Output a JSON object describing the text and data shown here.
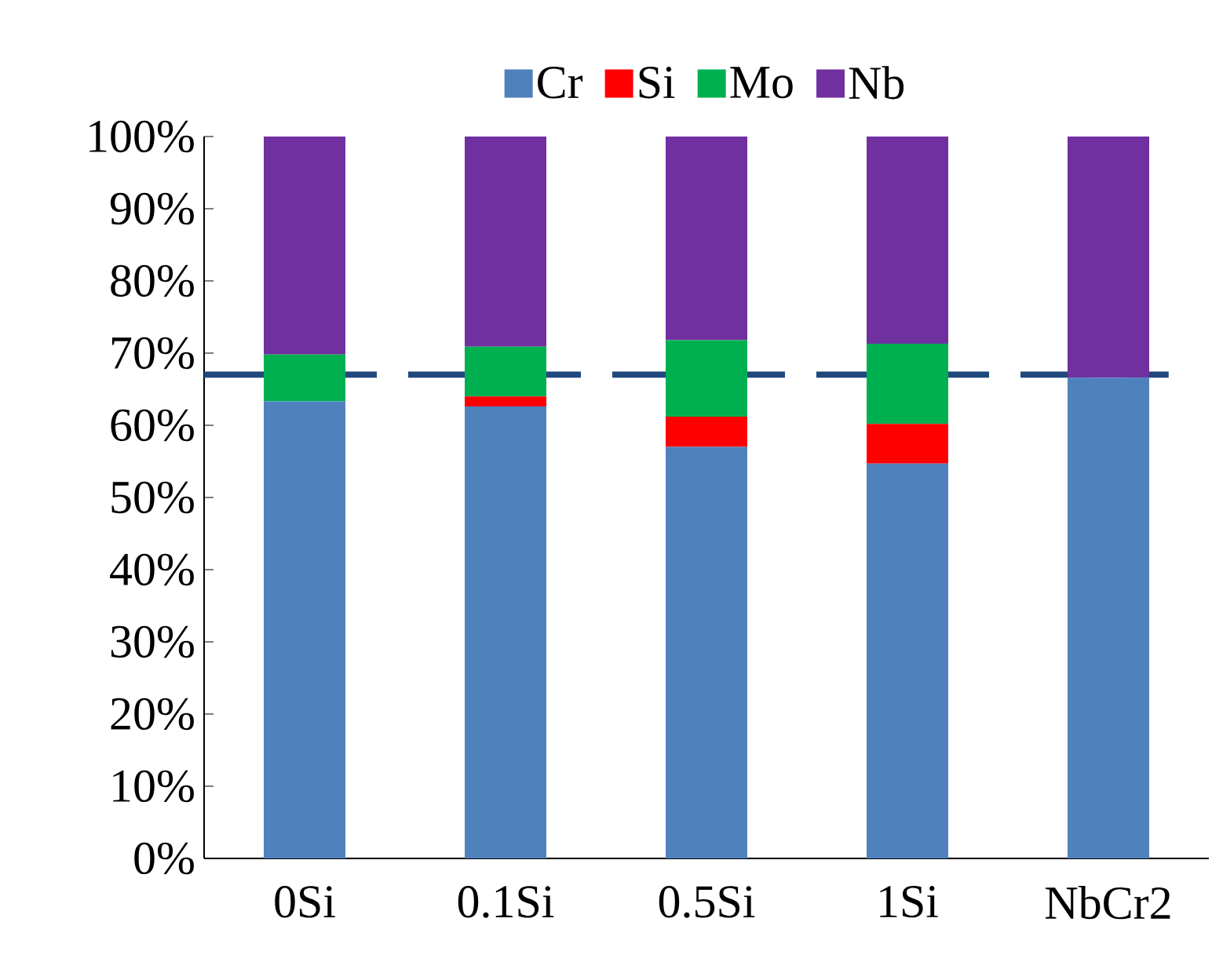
{
  "chart_data": {
    "type": "bar",
    "stacked": true,
    "categories": [
      "0Si",
      "0.1Si",
      "0.5Si",
      "1Si",
      "NbCr2"
    ],
    "series": [
      {
        "name": "Cr",
        "color": "#4f81bd",
        "values": [
          63.3,
          62.6,
          57.0,
          54.7,
          66.6
        ]
      },
      {
        "name": "Si",
        "color": "#ff0000",
        "values": [
          0,
          1.4,
          4.2,
          5.5,
          0
        ]
      },
      {
        "name": "Mo",
        "color": "#00b050",
        "values": [
          6.5,
          6.9,
          10.6,
          11.1,
          0
        ]
      },
      {
        "name": "Nb",
        "color": "#7030a0",
        "values": [
          30.2,
          29.1,
          28.2,
          28.7,
          33.4
        ]
      }
    ],
    "ylim": [
      0,
      100
    ],
    "yticks": [
      {
        "value": 0,
        "label": "0%"
      },
      {
        "value": 10,
        "label": "10%"
      },
      {
        "value": 20,
        "label": "20%"
      },
      {
        "value": 30,
        "label": "30%"
      },
      {
        "value": 40,
        "label": "40%"
      },
      {
        "value": 50,
        "label": "50%"
      },
      {
        "value": 60,
        "label": "60%"
      },
      {
        "value": 70,
        "label": "70%"
      },
      {
        "value": 80,
        "label": "80%"
      },
      {
        "value": 90,
        "label": "90%"
      },
      {
        "value": 100,
        "label": "100%"
      }
    ],
    "ref_lines": [
      {
        "axis": "y",
        "value": 67,
        "color": "#1f497d",
        "line_style": "dashed"
      }
    ],
    "legend": "top",
    "grid": false
  }
}
